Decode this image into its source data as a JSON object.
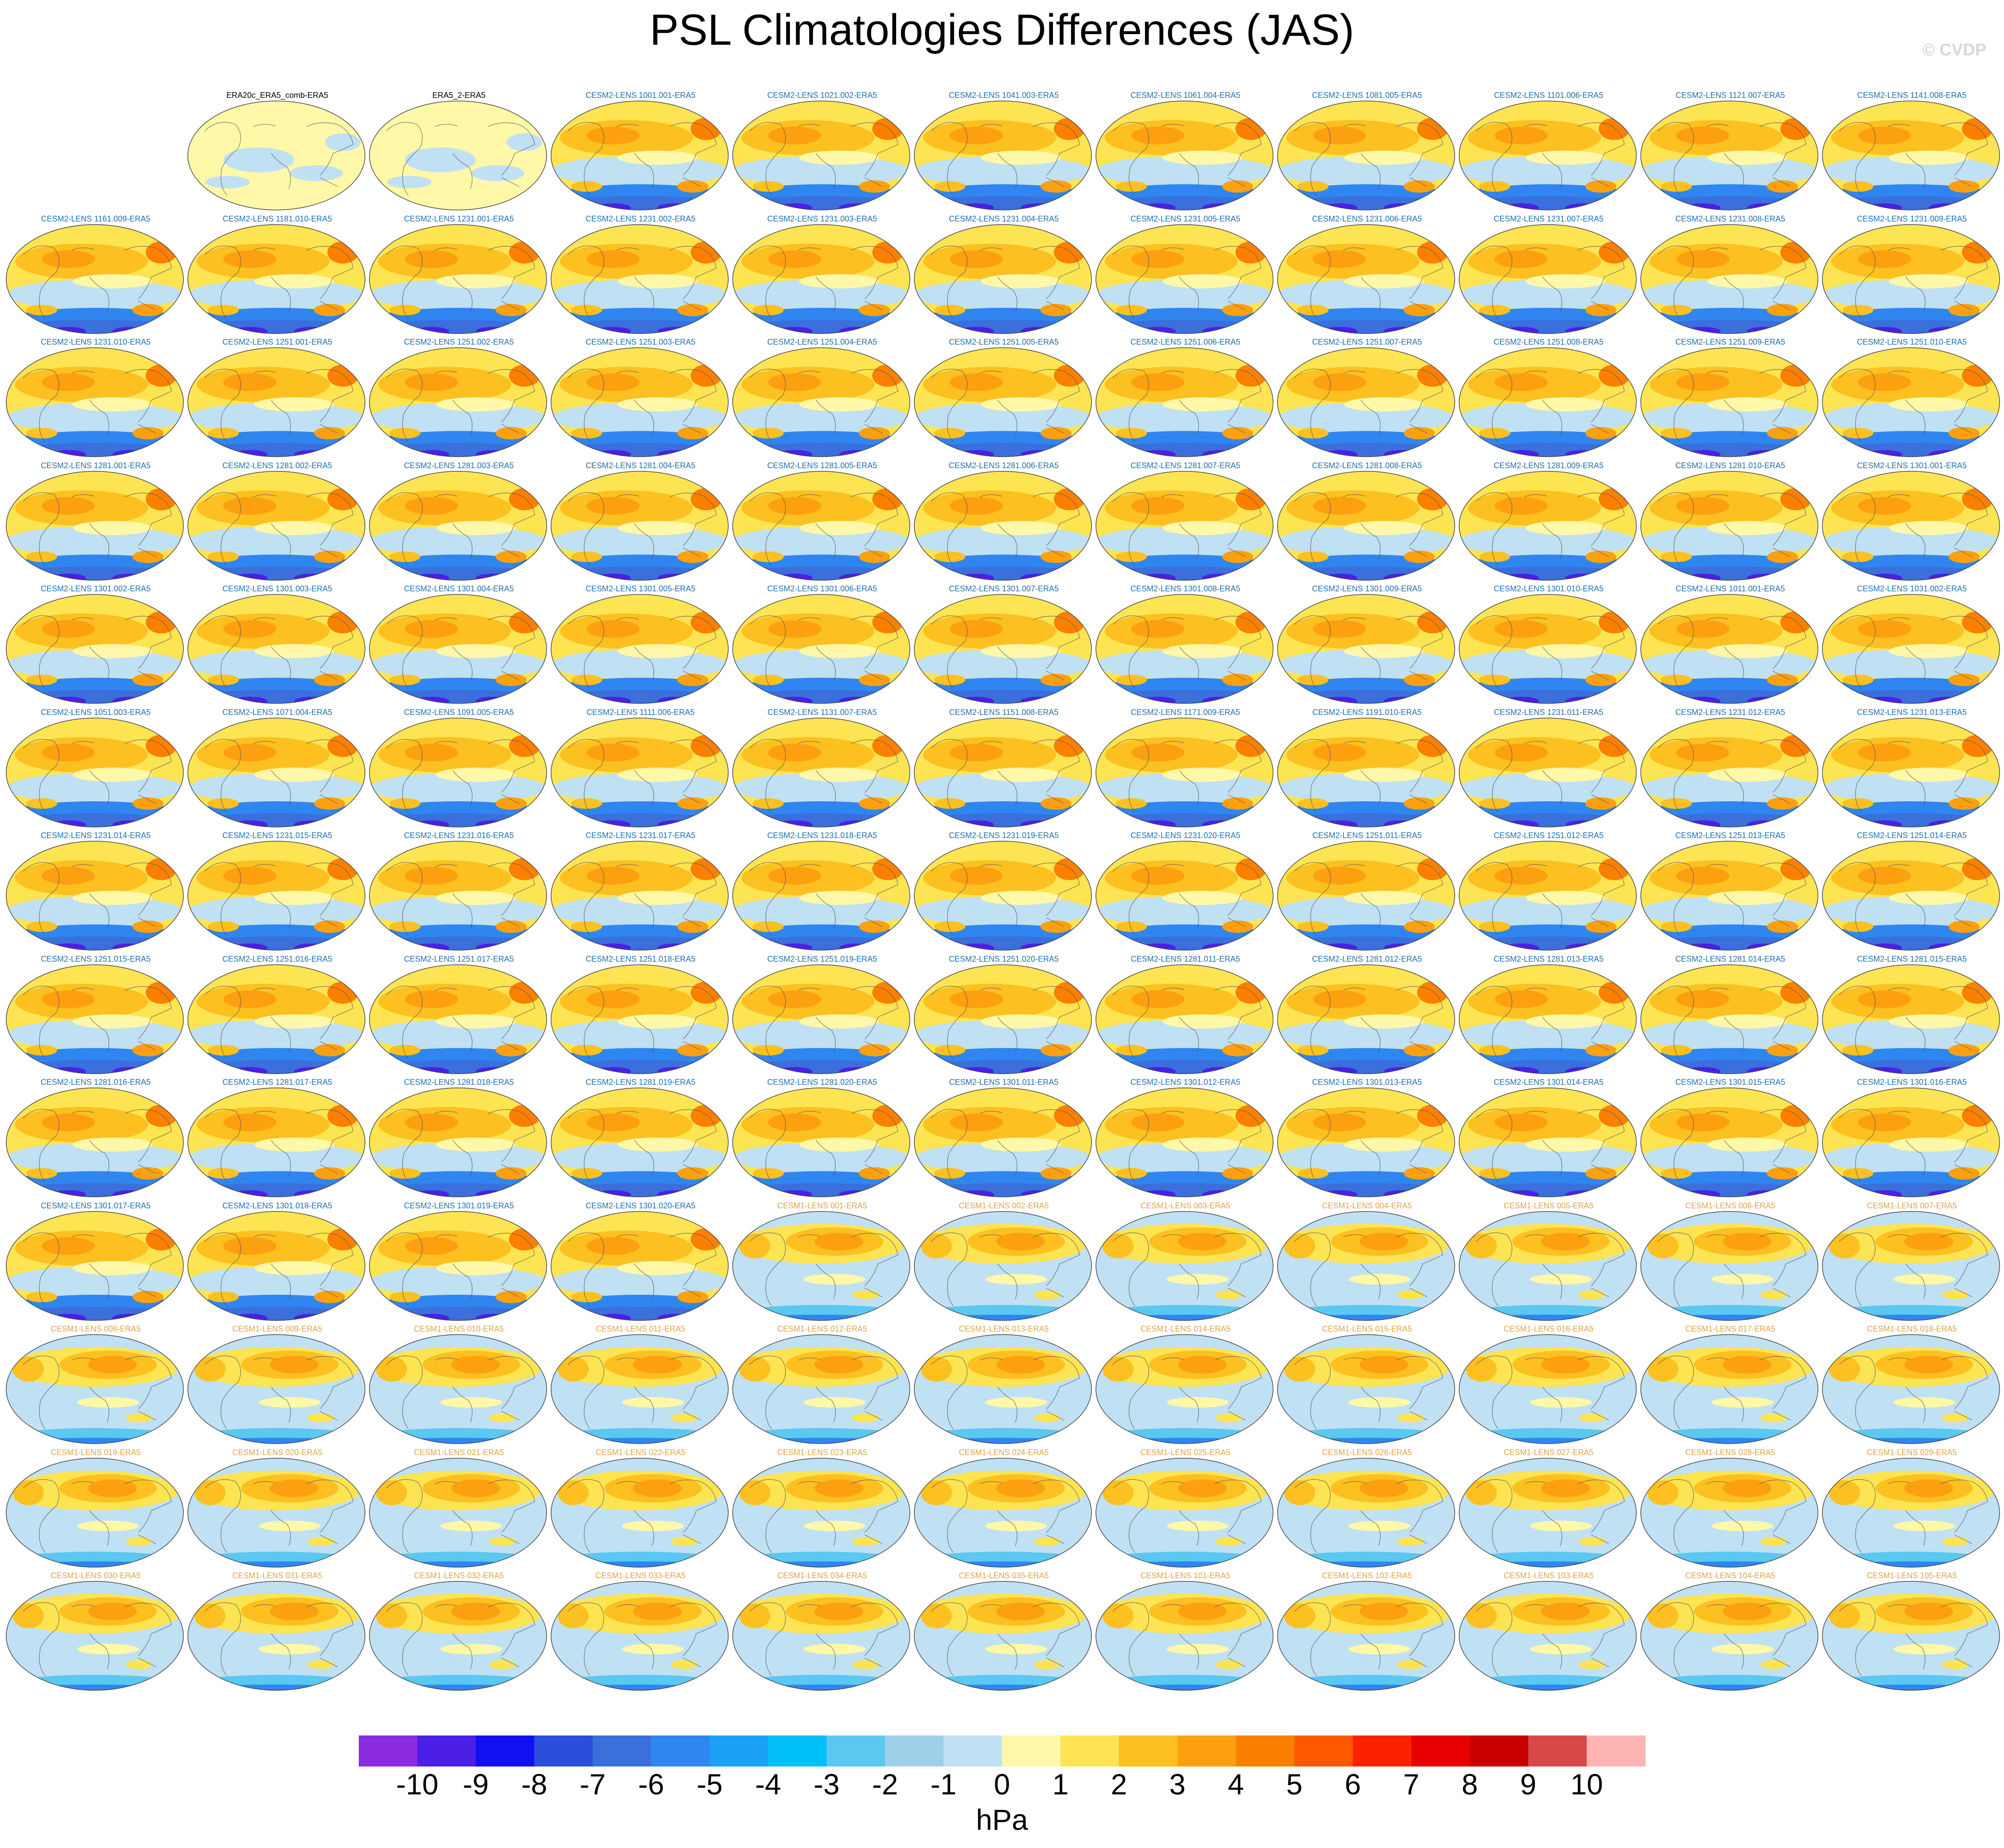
{
  "title": "PSL Climatologies Differences (JAS)",
  "watermark": "© CVDP",
  "colorbar": {
    "units": "hPa",
    "colors": [
      "#8a2be2",
      "#4b1fe8",
      "#1010f0",
      "#2a4ddc",
      "#3a6fdc",
      "#2f86f0",
      "#1aa0f5",
      "#00c0f8",
      "#5ac8f0",
      "#9ed0ea",
      "#c0e0f4",
      "#fff8a8",
      "#fde452",
      "#fcc020",
      "#fca010",
      "#fc8000",
      "#fc5800",
      "#fc2200",
      "#e80000",
      "#c80000",
      "#d84848",
      "#ffb4b4"
    ],
    "tick_labels": [
      "-10",
      "-9",
      "-8",
      "-7",
      "-6",
      "-5",
      "-4",
      "-3",
      "-2",
      "-1",
      "0",
      "1",
      "2",
      "3",
      "4",
      "5",
      "6",
      "7",
      "8",
      "9",
      "10"
    ]
  },
  "chart_data": {
    "type": "heatmap",
    "description_levels": [
      -10,
      -9,
      -8,
      -7,
      -6,
      -5,
      -4,
      -3,
      -2,
      -1,
      0,
      1,
      2,
      3,
      4,
      5,
      6,
      7,
      8,
      9,
      10
    ],
    "units": "hPa",
    "grid": {
      "columns": 11,
      "rows": 13
    },
    "panels": [
      {
        "label": "ERA20c_ERA5_comb-ERA5",
        "style": "obs"
      },
      {
        "label": "ERA5_2-ERA5",
        "style": "obs"
      },
      {
        "label": "CESM2-LENS 1001.001-ERA5",
        "style": "cesm2"
      },
      {
        "label": "CESM2-LENS 1021.002-ERA5",
        "style": "cesm2"
      },
      {
        "label": "CESM2-LENS 1041.003-ERA5",
        "style": "cesm2"
      },
      {
        "label": "CESM2-LENS 1061.004-ERA5",
        "style": "cesm2"
      },
      {
        "label": "CESM2-LENS 1081.005-ERA5",
        "style": "cesm2"
      },
      {
        "label": "CESM2-LENS 1101.006-ERA5",
        "style": "cesm2"
      },
      {
        "label": "CESM2-LENS 1121.007-ERA5",
        "style": "cesm2"
      },
      {
        "label": "CESM2-LENS 1141.008-ERA5",
        "style": "cesm2"
      },
      {
        "label": "CESM2-LENS 1161.009-ERA5",
        "style": "cesm2"
      },
      {
        "label": "CESM2-LENS 1181.010-ERA5",
        "style": "cesm2"
      },
      {
        "label": "CESM2-LENS 1231.001-ERA5",
        "style": "cesm2"
      },
      {
        "label": "CESM2-LENS 1231.002-ERA5",
        "style": "cesm2"
      },
      {
        "label": "CESM2-LENS 1231.003-ERA5",
        "style": "cesm2"
      },
      {
        "label": "CESM2-LENS 1231.004-ERA5",
        "style": "cesm2"
      },
      {
        "label": "CESM2-LENS 1231.005-ERA5",
        "style": "cesm2"
      },
      {
        "label": "CESM2-LENS 1231.006-ERA5",
        "style": "cesm2"
      },
      {
        "label": "CESM2-LENS 1231.007-ERA5",
        "style": "cesm2"
      },
      {
        "label": "CESM2-LENS 1231.008-ERA5",
        "style": "cesm2"
      },
      {
        "label": "CESM2-LENS 1231.009-ERA5",
        "style": "cesm2"
      },
      {
        "label": "CESM2-LENS 1231.010-ERA5",
        "style": "cesm2"
      },
      {
        "label": "CESM2-LENS 1251.001-ERA5",
        "style": "cesm2"
      },
      {
        "label": "CESM2-LENS 1251.002-ERA5",
        "style": "cesm2"
      },
      {
        "label": "CESM2-LENS 1251.003-ERA5",
        "style": "cesm2"
      },
      {
        "label": "CESM2-LENS 1251.004-ERA5",
        "style": "cesm2"
      },
      {
        "label": "CESM2-LENS 1251.005-ERA5",
        "style": "cesm2"
      },
      {
        "label": "CESM2-LENS 1251.006-ERA5",
        "style": "cesm2"
      },
      {
        "label": "CESM2-LENS 1251.007-ERA5",
        "style": "cesm2"
      },
      {
        "label": "CESM2-LENS 1251.008-ERA5",
        "style": "cesm2"
      },
      {
        "label": "CESM2-LENS 1251.009-ERA5",
        "style": "cesm2"
      },
      {
        "label": "CESM2-LENS 1251.010-ERA5",
        "style": "cesm2"
      },
      {
        "label": "CESM2-LENS 1281.001-ERA5",
        "style": "cesm2"
      },
      {
        "label": "CESM2-LENS 1281.002-ERA5",
        "style": "cesm2"
      },
      {
        "label": "CESM2-LENS 1281.003-ERA5",
        "style": "cesm2"
      },
      {
        "label": "CESM2-LENS 1281.004-ERA5",
        "style": "cesm2"
      },
      {
        "label": "CESM2-LENS 1281.005-ERA5",
        "style": "cesm2"
      },
      {
        "label": "CESM2-LENS 1281.006-ERA5",
        "style": "cesm2"
      },
      {
        "label": "CESM2-LENS 1281.007-ERA5",
        "style": "cesm2"
      },
      {
        "label": "CESM2-LENS 1281.008-ERA5",
        "style": "cesm2"
      },
      {
        "label": "CESM2-LENS 1281.009-ERA5",
        "style": "cesm2"
      },
      {
        "label": "CESM2-LENS 1281.010-ERA5",
        "style": "cesm2"
      },
      {
        "label": "CESM2-LENS 1301.001-ERA5",
        "style": "cesm2"
      },
      {
        "label": "CESM2-LENS 1301.002-ERA5",
        "style": "cesm2"
      },
      {
        "label": "CESM2-LENS 1301.003-ERA5",
        "style": "cesm2"
      },
      {
        "label": "CESM2-LENS 1301.004-ERA5",
        "style": "cesm2"
      },
      {
        "label": "CESM2-LENS 1301.005-ERA5",
        "style": "cesm2"
      },
      {
        "label": "CESM2-LENS 1301.006-ERA5",
        "style": "cesm2"
      },
      {
        "label": "CESM2-LENS 1301.007-ERA5",
        "style": "cesm2"
      },
      {
        "label": "CESM2-LENS 1301.008-ERA5",
        "style": "cesm2"
      },
      {
        "label": "CESM2-LENS 1301.009-ERA5",
        "style": "cesm2"
      },
      {
        "label": "CESM2-LENS 1301.010-ERA5",
        "style": "cesm2"
      },
      {
        "label": "CESM2-LENS 1011.001-ERA5",
        "style": "cesm2"
      },
      {
        "label": "CESM2-LENS 1031.002-ERA5",
        "style": "cesm2"
      },
      {
        "label": "CESM2-LENS 1051.003-ERA5",
        "style": "cesm2"
      },
      {
        "label": "CESM2-LENS 1071.004-ERA5",
        "style": "cesm2"
      },
      {
        "label": "CESM2-LENS 1091.005-ERA5",
        "style": "cesm2"
      },
      {
        "label": "CESM2-LENS 1111.006-ERA5",
        "style": "cesm2"
      },
      {
        "label": "CESM2-LENS 1131.007-ERA5",
        "style": "cesm2"
      },
      {
        "label": "CESM2-LENS 1151.008-ERA5",
        "style": "cesm2"
      },
      {
        "label": "CESM2-LENS 1171.009-ERA5",
        "style": "cesm2"
      },
      {
        "label": "CESM2-LENS 1191.010-ERA5",
        "style": "cesm2"
      },
      {
        "label": "CESM2-LENS 1231.011-ERA5",
        "style": "cesm2"
      },
      {
        "label": "CESM2-LENS 1231.012-ERA5",
        "style": "cesm2"
      },
      {
        "label": "CESM2-LENS 1231.013-ERA5",
        "style": "cesm2"
      },
      {
        "label": "CESM2-LENS 1231.014-ERA5",
        "style": "cesm2"
      },
      {
        "label": "CESM2-LENS 1231.015-ERA5",
        "style": "cesm2"
      },
      {
        "label": "CESM2-LENS 1231.016-ERA5",
        "style": "cesm2"
      },
      {
        "label": "CESM2-LENS 1231.017-ERA5",
        "style": "cesm2"
      },
      {
        "label": "CESM2-LENS 1231.018-ERA5",
        "style": "cesm2"
      },
      {
        "label": "CESM2-LENS 1231.019-ERA5",
        "style": "cesm2"
      },
      {
        "label": "CESM2-LENS 1231.020-ERA5",
        "style": "cesm2"
      },
      {
        "label": "CESM2-LENS 1251.011-ERA5",
        "style": "cesm2"
      },
      {
        "label": "CESM2-LENS 1251.012-ERA5",
        "style": "cesm2"
      },
      {
        "label": "CESM2-LENS 1251.013-ERA5",
        "style": "cesm2"
      },
      {
        "label": "CESM2-LENS 1251.014-ERA5",
        "style": "cesm2"
      },
      {
        "label": "CESM2-LENS 1251.015-ERA5",
        "style": "cesm2"
      },
      {
        "label": "CESM2-LENS 1251.016-ERA5",
        "style": "cesm2"
      },
      {
        "label": "CESM2-LENS 1251.017-ERA5",
        "style": "cesm2"
      },
      {
        "label": "CESM2-LENS 1251.018-ERA5",
        "style": "cesm2"
      },
      {
        "label": "CESM2-LENS 1251.019-ERA5",
        "style": "cesm2"
      },
      {
        "label": "CESM2-LENS 1251.020-ERA5",
        "style": "cesm2"
      },
      {
        "label": "CESM2-LENS 1281.011-ERA5",
        "style": "cesm2"
      },
      {
        "label": "CESM2-LENS 1281.012-ERA5",
        "style": "cesm2"
      },
      {
        "label": "CESM2-LENS 1281.013-ERA5",
        "style": "cesm2"
      },
      {
        "label": "CESM2-LENS 1281.014-ERA5",
        "style": "cesm2"
      },
      {
        "label": "CESM2-LENS 1281.015-ERA5",
        "style": "cesm2"
      },
      {
        "label": "CESM2-LENS 1281.016-ERA5",
        "style": "cesm2"
      },
      {
        "label": "CESM2-LENS 1281.017-ERA5",
        "style": "cesm2"
      },
      {
        "label": "CESM2-LENS 1281.018-ERA5",
        "style": "cesm2"
      },
      {
        "label": "CESM2-LENS 1281.019-ERA5",
        "style": "cesm2"
      },
      {
        "label": "CESM2-LENS 1281.020-ERA5",
        "style": "cesm2"
      },
      {
        "label": "CESM2-LENS 1301.011-ERA5",
        "style": "cesm2"
      },
      {
        "label": "CESM2-LENS 1301.012-ERA5",
        "style": "cesm2"
      },
      {
        "label": "CESM2-LENS 1301.013-ERA5",
        "style": "cesm2"
      },
      {
        "label": "CESM2-LENS 1301.014-ERA5",
        "style": "cesm2"
      },
      {
        "label": "CESM2-LENS 1301.015-ERA5",
        "style": "cesm2"
      },
      {
        "label": "CESM2-LENS 1301.016-ERA5",
        "style": "cesm2"
      },
      {
        "label": "CESM2-LENS 1301.017-ERA5",
        "style": "cesm2"
      },
      {
        "label": "CESM2-LENS 1301.018-ERA5",
        "style": "cesm2"
      },
      {
        "label": "CESM2-LENS 1301.019-ERA5",
        "style": "cesm2"
      },
      {
        "label": "CESM2-LENS 1301.020-ERA5",
        "style": "cesm2"
      },
      {
        "label": "CESM1-LENS 001-ERA5",
        "style": "cesm1"
      },
      {
        "label": "CESM1-LENS 002-ERA5",
        "style": "cesm1"
      },
      {
        "label": "CESM1-LENS 003-ERA5",
        "style": "cesm1"
      },
      {
        "label": "CESM1-LENS 004-ERA5",
        "style": "cesm1"
      },
      {
        "label": "CESM1-LENS 005-ERA5",
        "style": "cesm1"
      },
      {
        "label": "CESM1-LENS 006-ERA5",
        "style": "cesm1"
      },
      {
        "label": "CESM1-LENS 007-ERA5",
        "style": "cesm1"
      },
      {
        "label": "CESM1-LENS 008-ERA5",
        "style": "cesm1"
      },
      {
        "label": "CESM1-LENS 009-ERA5",
        "style": "cesm1"
      },
      {
        "label": "CESM1-LENS 010-ERA5",
        "style": "cesm1"
      },
      {
        "label": "CESM1-LENS 011-ERA5",
        "style": "cesm1"
      },
      {
        "label": "CESM1-LENS 012-ERA5",
        "style": "cesm1"
      },
      {
        "label": "CESM1-LENS 013-ERA5",
        "style": "cesm1"
      },
      {
        "label": "CESM1-LENS 014-ERA5",
        "style": "cesm1"
      },
      {
        "label": "CESM1-LENS 015-ERA5",
        "style": "cesm1"
      },
      {
        "label": "CESM1-LENS 016-ERA5",
        "style": "cesm1"
      },
      {
        "label": "CESM1-LENS 017-ERA5",
        "style": "cesm1"
      },
      {
        "label": "CESM1-LENS 018-ERA5",
        "style": "cesm1"
      },
      {
        "label": "CESM1-LENS 019-ERA5",
        "style": "cesm1"
      },
      {
        "label": "CESM1-LENS 020-ERA5",
        "style": "cesm1"
      },
      {
        "label": "CESM1-LENS 021-ERA5",
        "style": "cesm1"
      },
      {
        "label": "CESM1-LENS 022-ERA5",
        "style": "cesm1"
      },
      {
        "label": "CESM1-LENS 023-ERA5",
        "style": "cesm1"
      },
      {
        "label": "CESM1-LENS 024-ERA5",
        "style": "cesm1"
      },
      {
        "label": "CESM1-LENS 025-ERA5",
        "style": "cesm1"
      },
      {
        "label": "CESM1-LENS 026-ERA5",
        "style": "cesm1"
      },
      {
        "label": "CESM1-LENS 027-ERA5",
        "style": "cesm1"
      },
      {
        "label": "CESM1-LENS 028-ERA5",
        "style": "cesm1"
      },
      {
        "label": "CESM1-LENS 029-ERA5",
        "style": "cesm1"
      },
      {
        "label": "CESM1-LENS 030-ERA5",
        "style": "cesm1"
      },
      {
        "label": "CESM1-LENS 031-ERA5",
        "style": "cesm1"
      },
      {
        "label": "CESM1-LENS 032-ERA5",
        "style": "cesm1"
      },
      {
        "label": "CESM1-LENS 033-ERA5",
        "style": "cesm1"
      },
      {
        "label": "CESM1-LENS 034-ERA5",
        "style": "cesm1"
      },
      {
        "label": "CESM1-LENS 035-ERA5",
        "style": "cesm1"
      },
      {
        "label": "CESM1-LENS 101-ERA5",
        "style": "cesm1"
      },
      {
        "label": "CESM1-LENS 102-ERA5",
        "style": "cesm1"
      },
      {
        "label": "CESM1-LENS 103-ERA5",
        "style": "cesm1"
      },
      {
        "label": "CESM1-LENS 104-ERA5",
        "style": "cesm1"
      },
      {
        "label": "CESM1-LENS 105-ERA5",
        "style": "cesm1"
      }
    ]
  }
}
